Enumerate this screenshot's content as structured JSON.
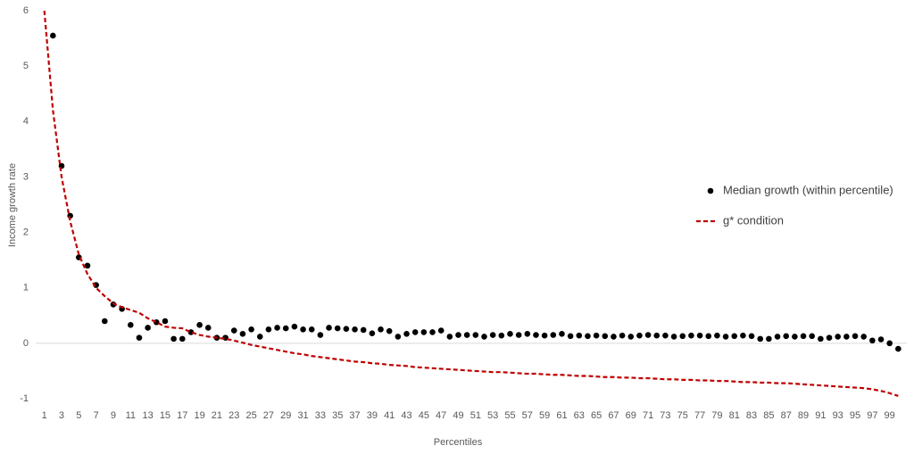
{
  "chart_data": {
    "type": "scatter",
    "x_label": "Percentiles",
    "y_label": "Income growth rate",
    "x": [
      1,
      2,
      3,
      4,
      5,
      6,
      7,
      8,
      9,
      10,
      11,
      12,
      13,
      14,
      15,
      16,
      17,
      18,
      19,
      20,
      21,
      22,
      23,
      24,
      25,
      26,
      27,
      28,
      29,
      30,
      31,
      32,
      33,
      34,
      35,
      36,
      37,
      38,
      39,
      40,
      41,
      42,
      43,
      44,
      45,
      46,
      47,
      48,
      49,
      50,
      51,
      52,
      53,
      54,
      55,
      56,
      57,
      58,
      59,
      60,
      61,
      62,
      63,
      64,
      65,
      66,
      67,
      68,
      69,
      70,
      71,
      72,
      73,
      74,
      75,
      76,
      77,
      78,
      79,
      80,
      81,
      82,
      83,
      84,
      85,
      86,
      87,
      88,
      89,
      90,
      91,
      92,
      93,
      94,
      95,
      96,
      97,
      98,
      99,
      100
    ],
    "series": [
      {
        "name": "Median growth (within percentile)",
        "type": "scatter",
        "color": "#000000",
        "values": [
          null,
          5.55,
          3.2,
          2.3,
          1.55,
          1.4,
          1.05,
          0.4,
          0.7,
          0.62,
          0.33,
          0.1,
          0.28,
          0.38,
          0.4,
          0.08,
          0.08,
          0.2,
          0.33,
          0.28,
          0.1,
          0.1,
          0.23,
          0.17,
          0.25,
          0.12,
          0.25,
          0.28,
          0.27,
          0.3,
          0.25,
          0.25,
          0.15,
          0.28,
          0.27,
          0.26,
          0.25,
          0.24,
          0.18,
          0.25,
          0.22,
          0.12,
          0.17,
          0.2,
          0.2,
          0.2,
          0.23,
          0.12,
          0.15,
          0.15,
          0.15,
          0.12,
          0.15,
          0.14,
          0.17,
          0.15,
          0.17,
          0.15,
          0.14,
          0.15,
          0.17,
          0.13,
          0.14,
          0.13,
          0.14,
          0.13,
          0.12,
          0.14,
          0.12,
          0.14,
          0.15,
          0.14,
          0.14,
          0.12,
          0.13,
          0.14,
          0.14,
          0.13,
          0.14,
          0.12,
          0.13,
          0.14,
          0.13,
          0.08,
          0.08,
          0.12,
          0.13,
          0.12,
          0.13,
          0.13,
          0.08,
          0.1,
          0.12,
          0.12,
          0.13,
          0.12,
          0.05,
          0.07,
          0.0,
          -0.1
        ]
      },
      {
        "name": "g* condition",
        "type": "line",
        "color": "#c00000",
        "values": [
          6,
          4.2,
          3.0,
          2.2,
          1.6,
          1.25,
          1.0,
          0.85,
          0.72,
          0.65,
          0.6,
          0.55,
          0.45,
          0.38,
          0.3,
          0.28,
          0.27,
          0.2,
          0.15,
          0.12,
          0.1,
          0.08,
          0.05,
          0.01,
          -0.03,
          -0.06,
          -0.09,
          -0.12,
          -0.15,
          -0.18,
          -0.2,
          -0.23,
          -0.25,
          -0.27,
          -0.29,
          -0.31,
          -0.33,
          -0.34,
          -0.36,
          -0.37,
          -0.39,
          -0.4,
          -0.41,
          -0.43,
          -0.44,
          -0.45,
          -0.46,
          -0.47,
          -0.48,
          -0.49,
          -0.5,
          -0.51,
          -0.52,
          -0.52,
          -0.53,
          -0.54,
          -0.55,
          -0.55,
          -0.56,
          -0.57,
          -0.57,
          -0.58,
          -0.59,
          -0.59,
          -0.6,
          -0.61,
          -0.61,
          -0.62,
          -0.62,
          -0.63,
          -0.63,
          -0.64,
          -0.65,
          -0.65,
          -0.66,
          -0.66,
          -0.67,
          -0.67,
          -0.68,
          -0.68,
          -0.69,
          -0.7,
          -0.7,
          -0.71,
          -0.71,
          -0.72,
          -0.72,
          -0.73,
          -0.74,
          -0.75,
          -0.76,
          -0.77,
          -0.78,
          -0.79,
          -0.8,
          -0.81,
          -0.83,
          -0.86,
          -0.9,
          -0.95
        ]
      }
    ],
    "xlim": [
      0,
      101
    ],
    "ylim": [
      -1,
      6
    ],
    "xticks": [
      1,
      3,
      5,
      7,
      9,
      11,
      13,
      15,
      17,
      19,
      21,
      23,
      25,
      27,
      29,
      31,
      33,
      35,
      37,
      39,
      41,
      43,
      45,
      47,
      49,
      51,
      53,
      55,
      57,
      59,
      61,
      63,
      65,
      67,
      69,
      71,
      73,
      75,
      77,
      79,
      81,
      83,
      85,
      87,
      89,
      91,
      93,
      95,
      97,
      99
    ],
    "yticks": [
      -1,
      0,
      1,
      2,
      3,
      4,
      5,
      6
    ],
    "grid": false,
    "legend": "right"
  }
}
